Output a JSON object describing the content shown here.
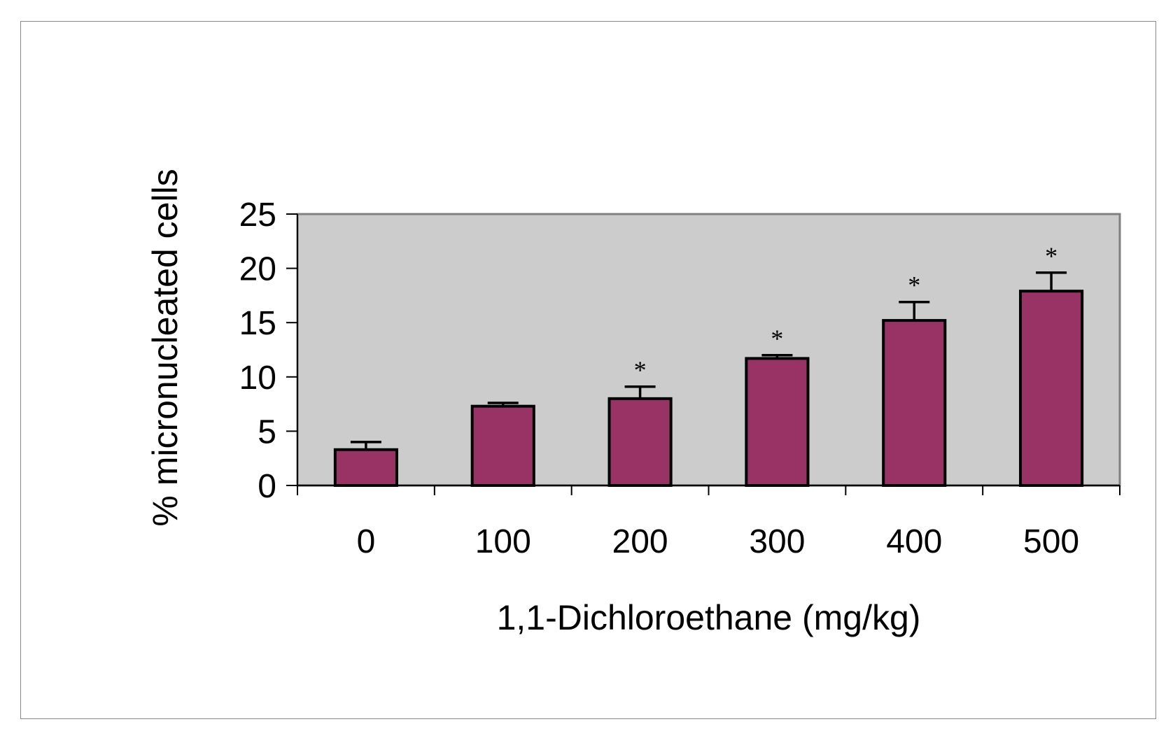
{
  "chart_data": {
    "type": "bar",
    "categories": [
      "0",
      "100",
      "200",
      "300",
      "400",
      "500"
    ],
    "values": [
      3.3,
      7.3,
      8.0,
      11.7,
      15.2,
      17.9
    ],
    "error_plus": [
      0.7,
      0.3,
      1.1,
      0.3,
      1.7,
      1.7
    ],
    "significance": [
      "",
      "",
      "*",
      "*",
      "*",
      "*"
    ],
    "xlabel": "1,1-Dichloroethane (mg/kg)",
    "ylabel": "% micronucleated cells",
    "ylim": [
      0,
      25
    ],
    "yticks": [
      "0",
      "5",
      "10",
      "15",
      "20",
      "25"
    ],
    "grid": false,
    "legend": "none",
    "colors": {
      "bar": "#993366",
      "plot_background": "#cccccc",
      "outline": "#000000"
    }
  }
}
